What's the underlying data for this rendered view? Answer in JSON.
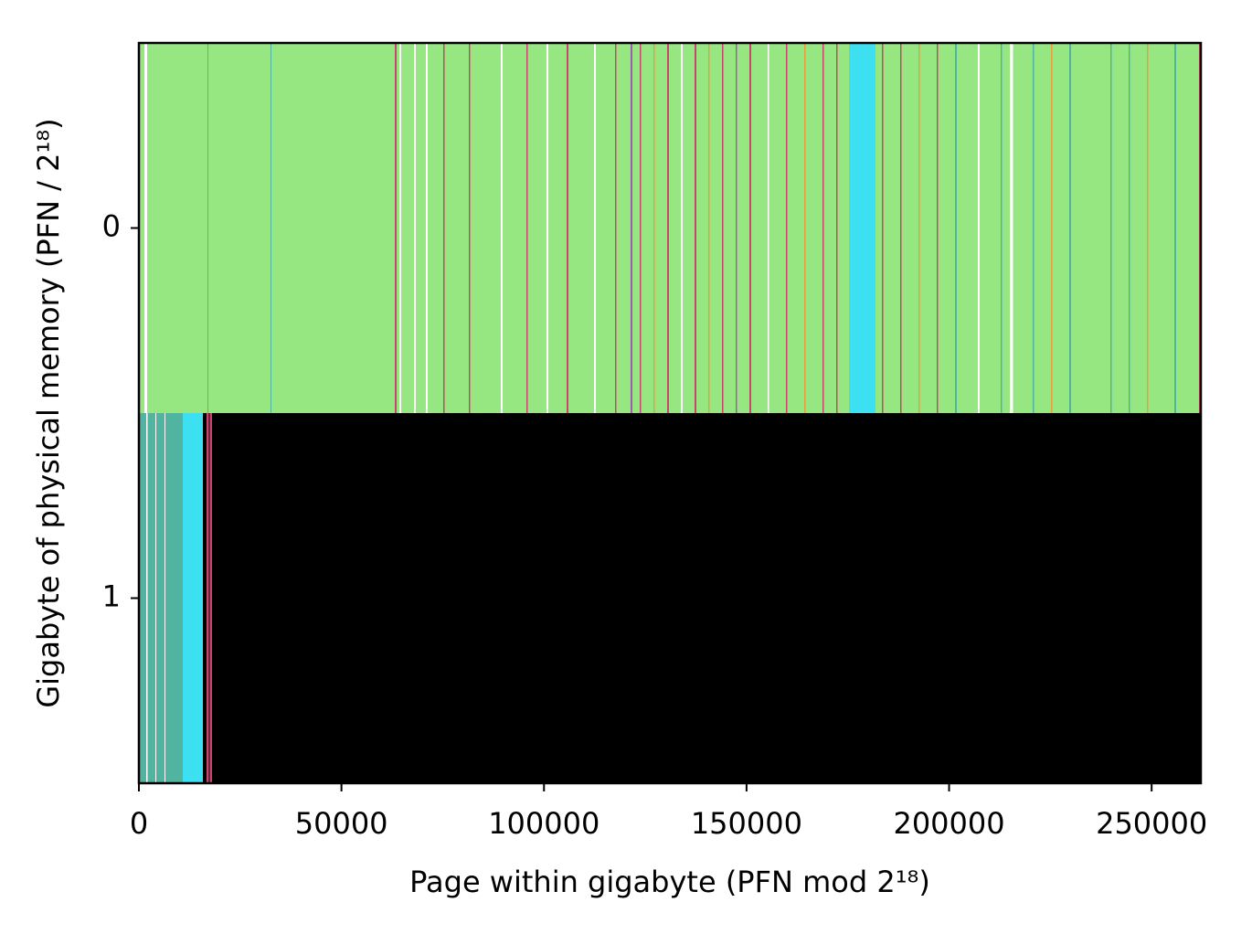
{
  "chart_data": {
    "type": "heatmap",
    "xlabel": "Page within gigabyte (PFN mod 2¹⁸)",
    "ylabel": "Gigabyte of physical memory (PFN / 2¹⁸)",
    "xlim": [
      0,
      262144
    ],
    "xticks": [
      0,
      50000,
      100000,
      150000,
      200000,
      250000
    ],
    "ylim": [
      -0.5,
      1.5
    ],
    "yticks": [
      0,
      1
    ],
    "rows": [
      {
        "y": 0,
        "starts": [
          0,
          1350,
          16900,
          32500,
          63200,
          64300,
          67900,
          70800,
          75100,
          81400,
          89300,
          95600,
          100600,
          105600,
          112300,
          117500,
          121400,
          123600,
          127000,
          130400,
          133800,
          137200,
          140500,
          143900,
          147300,
          150700,
          155200,
          159700,
          164200,
          168700,
          172100,
          175300,
          183400,
          187900,
          192400,
          196900,
          201500,
          207100,
          212700,
          215000,
          220600,
          225100,
          229700,
          239800,
          244300,
          248800,
          255600,
          261700
        ],
        "ends": [
          262144,
          2000,
          17100,
          32700,
          63600,
          64700,
          68400,
          71300,
          75500,
          81800,
          89800,
          96000,
          101100,
          106000,
          112800,
          117900,
          121800,
          124000,
          127400,
          130800,
          134200,
          137600,
          140900,
          144300,
          147700,
          151100,
          155600,
          160100,
          164600,
          169100,
          172500,
          181800,
          183800,
          188300,
          192800,
          197300,
          201900,
          207500,
          213100,
          215800,
          221000,
          225500,
          230100,
          240200,
          244700,
          249200,
          256000,
          262144
        ],
        "colors": [
          "#96e682",
          "#ffffff",
          "#50b4a0",
          "#50b4a0",
          "#c8466e",
          "#ffffff",
          "#ffffff",
          "#ffffff",
          "#c8466e",
          "#c8466e",
          "#ffffff",
          "#c8466e",
          "#ffffff",
          "#c8466e",
          "#ffffff",
          "#c8466e",
          "#a05ab4",
          "#c8466e",
          "#e6a03c",
          "#c8466e",
          "#ffffff",
          "#c8466e",
          "#e6a03c",
          "#c8466e",
          "#a05ab4",
          "#c8466e",
          "#ffffff",
          "#c8466e",
          "#e6a03c",
          "#c8466e",
          "#c8466e",
          "#3ce0f0",
          "#c8466e",
          "#c8466e",
          "#e6a03c",
          "#c8466e",
          "#50b4a0",
          "#ffffff",
          "#50b4a0",
          "#ffffff",
          "#50b4a0",
          "#e6a03c",
          "#50b4a0",
          "#50b4a0",
          "#50b4a0",
          "#e6a03c",
          "#50b4a0",
          "#c8466e"
        ]
      },
      {
        "y": 1,
        "starts": [
          0,
          0,
          1800,
          4100,
          6300,
          10800,
          16700,
          17500
        ],
        "ends": [
          262144,
          10800,
          2100,
          4300,
          6500,
          15800,
          17300,
          18000
        ],
        "colors": [
          "#000000",
          "#50b4a0",
          "#ffffff",
          "#ffffff",
          "#ffffff",
          "#3ce0f0",
          "#c8466e",
          "#c8466e"
        ]
      }
    ]
  }
}
